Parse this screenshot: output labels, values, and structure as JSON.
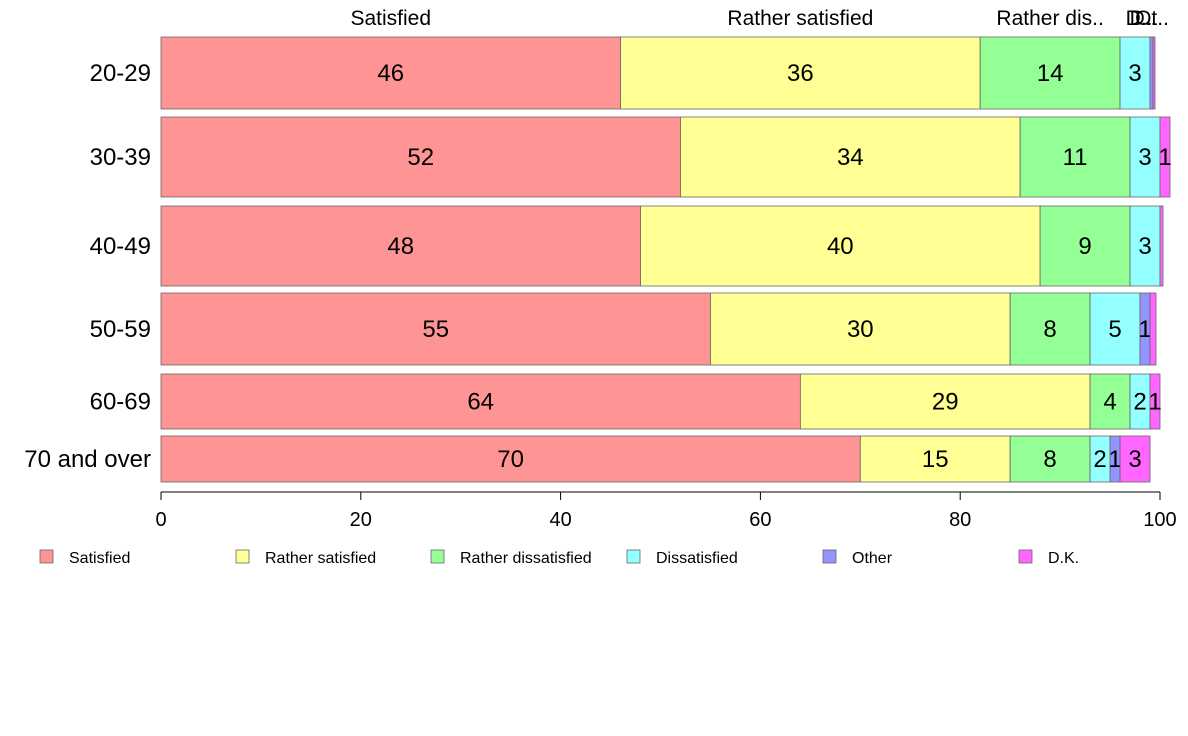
{
  "chart_data": {
    "type": "bar",
    "orientation": "horizontal",
    "stacked": true,
    "categories": [
      "20-29",
      "30-39",
      "40-49",
      "50-59",
      "60-69",
      "70 and over"
    ],
    "series": [
      {
        "name": "Satisfied",
        "color": "#ff9494",
        "values": [
          46,
          52,
          48,
          55,
          64,
          70
        ]
      },
      {
        "name": "Rather satisfied",
        "color": "#ffff94",
        "values": [
          36,
          34,
          40,
          30,
          29,
          15
        ]
      },
      {
        "name": "Rather dissatisfied",
        "color": "#94ff94",
        "values": [
          14,
          11,
          9,
          8,
          4,
          8
        ]
      },
      {
        "name": "Dissatisfied",
        "color": "#94ffff",
        "values": [
          3,
          3,
          3,
          5,
          2,
          2
        ]
      },
      {
        "name": "Other",
        "color": "#9494ff",
        "values": [
          0.3,
          0,
          0,
          1,
          0,
          1
        ]
      },
      {
        "name": "D.K.",
        "color": "#ff66ff",
        "values": [
          0.2,
          1,
          0.3,
          0.6,
          1,
          3
        ]
      }
    ],
    "data_labels": [
      [
        "46",
        "36",
        "14",
        "3",
        "",
        ""
      ],
      [
        "52",
        "34",
        "11",
        "3",
        "",
        "1"
      ],
      [
        "48",
        "40",
        "9",
        "3",
        "",
        ""
      ],
      [
        "55",
        "30",
        "8",
        "5",
        "1",
        ""
      ],
      [
        "64",
        "29",
        "4",
        "2",
        "",
        "1"
      ],
      [
        "70",
        "15",
        "8",
        "2",
        "1",
        "3"
      ]
    ],
    "top_labels": [
      "Satisfied",
      "Rather satisfied",
      "Rather dis..",
      "D..",
      "D..",
      "Ot.."
    ],
    "xlim": [
      0,
      100
    ],
    "xticks": [
      "0",
      "20",
      "40",
      "60",
      "80",
      "100"
    ],
    "legend_position": "bottom",
    "grid": false
  }
}
